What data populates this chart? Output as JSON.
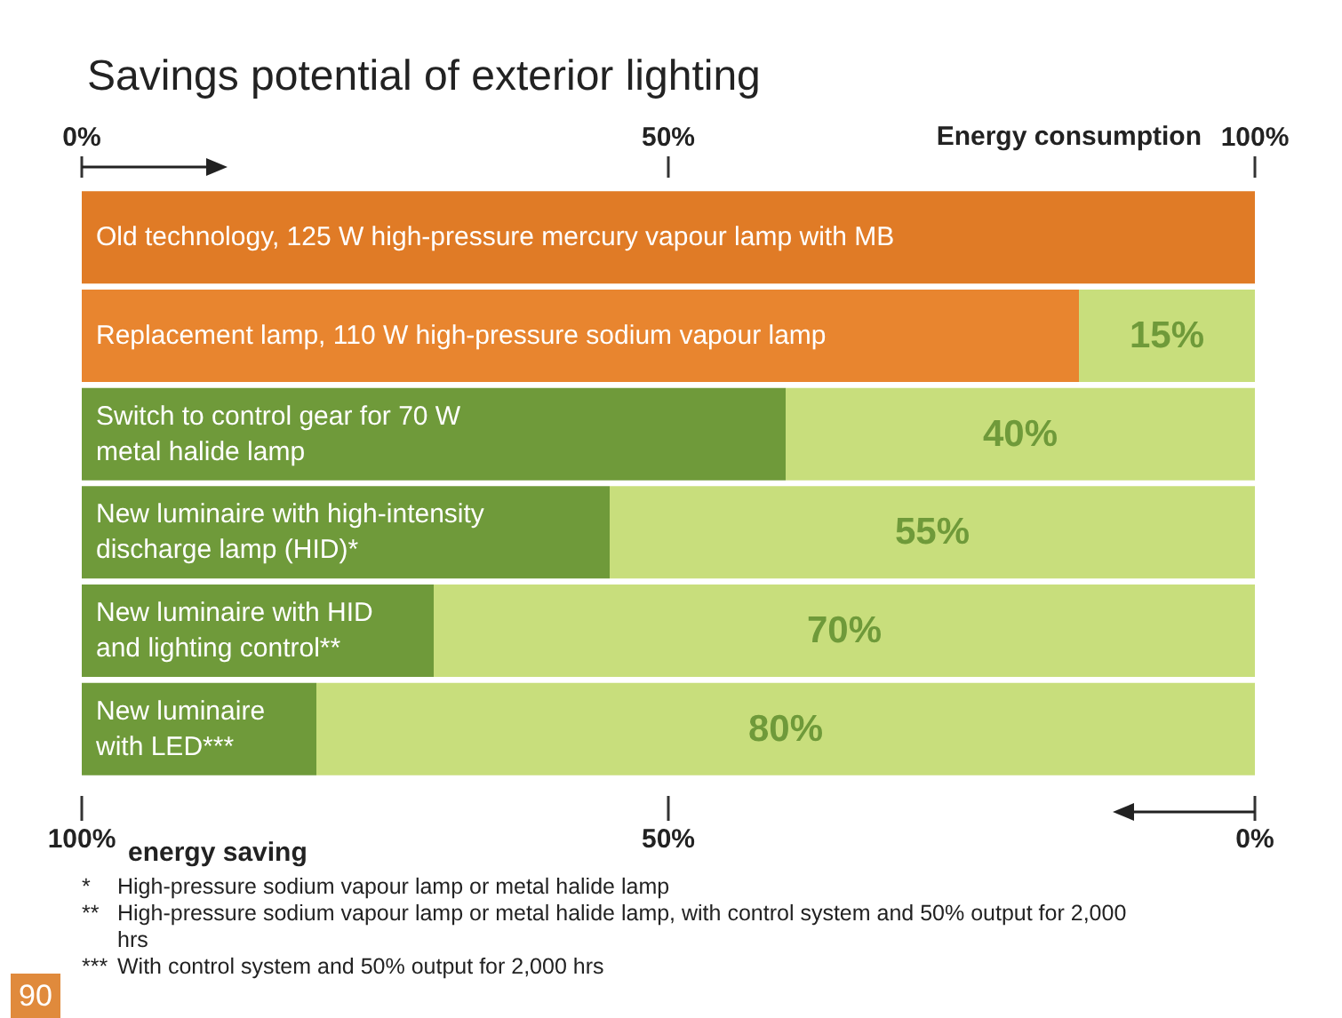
{
  "chart_data": {
    "type": "bar",
    "orientation": "horizontal",
    "stacked": true,
    "title": "Savings potential of exterior lighting",
    "categories": [
      "Old technology, 125 W high-pressure mercury vapour lamp with MB",
      "Replacement lamp, 110 W high-pressure sodium vapour lamp",
      "Switch to control gear for 70 W\nmetal halide lamp",
      "New luminaire with high-intensity\ndischarge lamp (HID)*",
      "New luminaire with HID\nand lighting control**",
      "New luminaire\nwith LED***"
    ],
    "series": [
      {
        "colors": [
          "#e07b26",
          "#e8852f",
          "#6f9a3a",
          "#6f9a3a",
          "#6f9a3a",
          "#6f9a3a"
        ],
        "values": [
          100,
          85,
          60,
          45,
          30,
          20
        ]
      },
      {
        "color": "#c8de7c",
        "values": [
          0,
          15,
          40,
          55,
          70,
          80
        ],
        "value_labels": [
          null,
          "15%",
          "40%",
          "55%",
          "70%",
          "80%"
        ]
      }
    ],
    "x2lim": [
      0,
      100
    ],
    "x2ticks": [
      {
        "value": 0,
        "label": "0%"
      },
      {
        "value": 50,
        "label": "50%"
      },
      {
        "value": 100,
        "label": "100%"
      }
    ],
    "x2label": "Energy consumption",
    "xlim": [
      100,
      0
    ],
    "xticks": [
      {
        "value": 100,
        "label": "100%"
      },
      {
        "value": 50,
        "label": "50%"
      },
      {
        "value": 0,
        "label": "0%"
      }
    ],
    "xlabel": "energy saving",
    "annotations": [
      "*     High-pressure sodium vapour lamp or metal halide lamp",
      "**    High-pressure sodium vapour lamp or metal halide lamp, with control system and 50% output for 2,000 hrs",
      "***  With control system and 50% output for 2,000 hrs",
      "90"
    ]
  }
}
